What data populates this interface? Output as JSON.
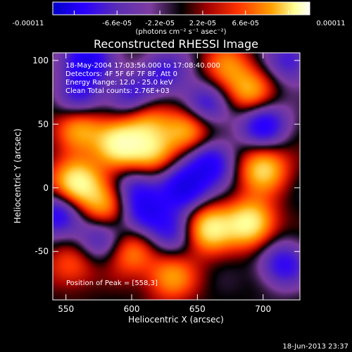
{
  "colorbar": {
    "tick_labels": [
      "-0.00011",
      "-6.6e-05",
      "-2.2e-05",
      "2.2e-05",
      "6.6e-05",
      "0.00011"
    ],
    "unit_label": "(photons cm⁻² s⁻¹ asec⁻²)",
    "range": [
      -0.00011,
      0.00011
    ]
  },
  "chart_data": {
    "type": "heatmap",
    "title": "Reconstructed RHESSI Image",
    "xlabel": "Heliocentric X (arcsec)",
    "ylabel": "Heliocentric Y (arcsec)",
    "xlim": [
      540,
      728
    ],
    "ylim": [
      -88,
      106
    ],
    "x_ticks": [
      550,
      600,
      650,
      700
    ],
    "y_ticks": [
      100,
      50,
      0,
      -50
    ],
    "annotations": [
      "18-May-2004 17:03:56.000 to 17:08:40.000",
      "Detectors: 4F 5F 6F 7F 8F, Att 0",
      "Energy Range: 12.0 - 25.0 keV",
      "Clean     Total counts: 2.76E+03"
    ],
    "peak_label": "Position of Peak = [558,3]",
    "peak": {
      "x": 558,
      "y": 3
    },
    "colormap": [
      "#0000c8",
      "#2a00ff",
      "#5a2db4",
      "#7d3ca0",
      "#000000",
      "#a00000",
      "#ff3200",
      "#ffa000",
      "#ffff96",
      "#ffffff"
    ],
    "sources": [
      {
        "x": 558,
        "y": 3,
        "amp": 1.0
      },
      {
        "x": 590,
        "y": 34,
        "amp": 0.95
      },
      {
        "x": 615,
        "y": 28,
        "amp": 0.6
      },
      {
        "x": 610,
        "y": 55,
        "amp": 0.55
      },
      {
        "x": 643,
        "y": 45,
        "amp": 0.7
      },
      {
        "x": 560,
        "y": 48,
        "amp": 0.6
      },
      {
        "x": 580,
        "y": -15,
        "amp": 0.6
      },
      {
        "x": 600,
        "y": -50,
        "amp": 0.5
      },
      {
        "x": 630,
        "y": -70,
        "amp": 0.55
      },
      {
        "x": 658,
        "y": -32,
        "amp": 0.85
      },
      {
        "x": 690,
        "y": -28,
        "amp": 0.9
      },
      {
        "x": 700,
        "y": 15,
        "amp": 0.75
      },
      {
        "x": 690,
        "y": 75,
        "amp": 0.6
      },
      {
        "x": 672,
        "y": 95,
        "amp": 0.45
      },
      {
        "x": 555,
        "y": -60,
        "amp": 0.4
      },
      {
        "x": 565,
        "y": 100,
        "amp": -0.8
      },
      {
        "x": 560,
        "y": 70,
        "amp": -0.5
      },
      {
        "x": 600,
        "y": 70,
        "amp": -0.6
      },
      {
        "x": 625,
        "y": 92,
        "amp": -0.5
      },
      {
        "x": 640,
        "y": 0,
        "amp": -0.85
      },
      {
        "x": 660,
        "y": 20,
        "amp": -0.7
      },
      {
        "x": 655,
        "y": 65,
        "amp": -0.6
      },
      {
        "x": 700,
        "y": 50,
        "amp": -0.75
      },
      {
        "x": 715,
        "y": -60,
        "amp": -0.6
      },
      {
        "x": 545,
        "y": -20,
        "amp": -0.7
      },
      {
        "x": 575,
        "y": -40,
        "amp": -0.5
      },
      {
        "x": 610,
        "y": -20,
        "amp": -0.6
      },
      {
        "x": 630,
        "y": -35,
        "amp": -0.5
      },
      {
        "x": 600,
        "y": 0,
        "amp": -0.45
      },
      {
        "x": 720,
        "y": 100,
        "amp": -0.5
      }
    ]
  },
  "footer": {
    "timestamp": "18-Jun-2013 23:37"
  }
}
